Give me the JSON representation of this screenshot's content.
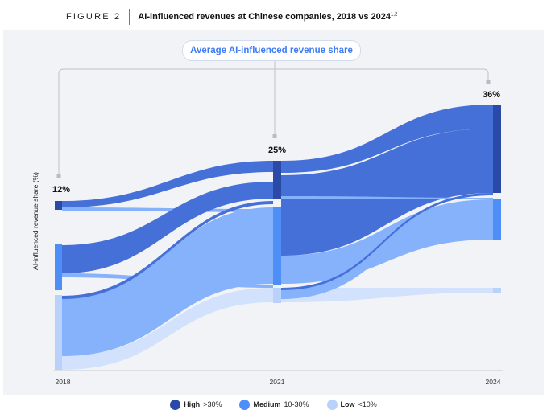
{
  "header": {
    "figure_label": "FIGURE 2",
    "title": "AI-influenced revenues at Chinese companies, 2018 vs 2024",
    "title_footnote": "1,2"
  },
  "annotation_label": "Average AI-influenced revenue share",
  "colors": {
    "high": "#2b4aa8",
    "high_flow": "#4570d8",
    "medium": "#4e8ef7",
    "medium_flow": "#86b1fb",
    "low": "#b9d2fb",
    "low_flow": "#d2e2fc",
    "panel": "#f1f3f6"
  },
  "legend": [
    {
      "name": "High",
      "range": ">30%",
      "color": "#2b4aa8"
    },
    {
      "name": "Medium",
      "range": "10-30%",
      "color": "#4e8ef7"
    },
    {
      "name": "Low",
      "range": "<10%",
      "color": "#b9d2fb"
    }
  ],
  "chart_data": {
    "type": "sankey",
    "ylabel": "AI-influenced revenue share (%)",
    "x": [
      "2018",
      "2021",
      "2024"
    ],
    "average_share": {
      "2018": "12%",
      "2021": "25%",
      "2024": "36%"
    },
    "categories": [
      "High",
      "Medium",
      "Low"
    ]
  }
}
